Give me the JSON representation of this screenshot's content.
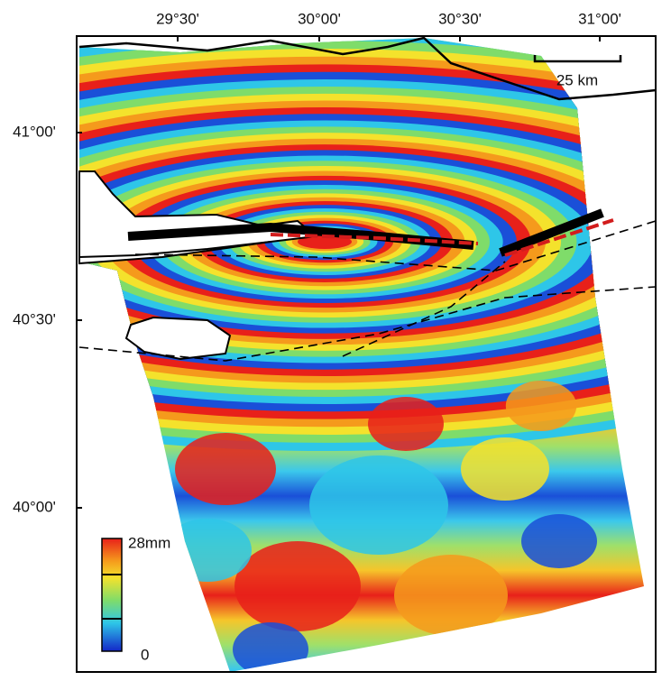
{
  "map": {
    "x_ticks": [
      "29°30'",
      "30°00'",
      "30°30'",
      "31°00'"
    ],
    "y_ticks": [
      "41°00'",
      "40°30'",
      "40°00'"
    ],
    "scale_bar": "25 km",
    "colorbar": {
      "max": "28mm",
      "min": "0"
    }
  }
}
